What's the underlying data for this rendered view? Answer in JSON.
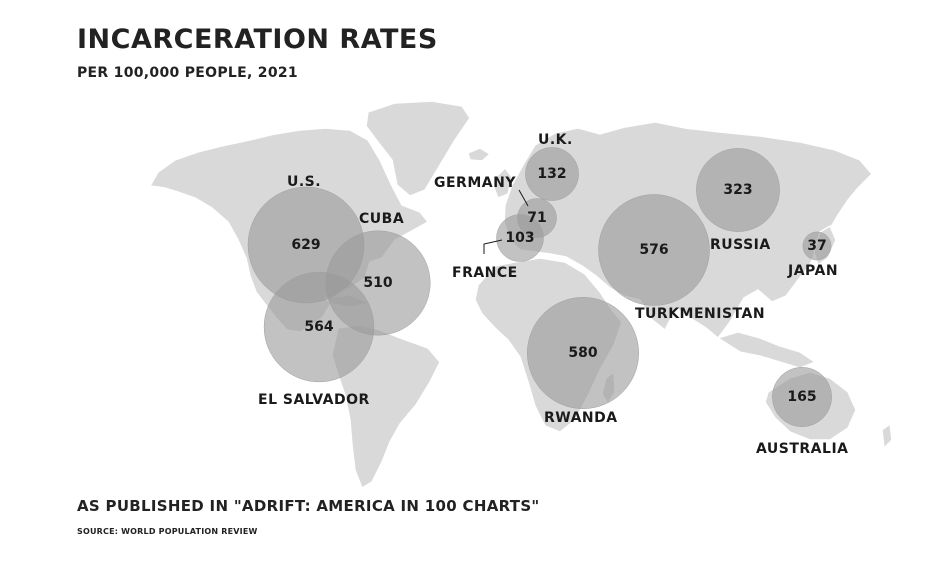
{
  "title": "INCARCERATION RATES",
  "subtitle": "PER 100,000 PEOPLE, 2021",
  "publication": "AS PUBLISHED IN \"ADRIFT: AMERICA IN 100 CHARTS\"",
  "source": "SOURCE: WORLD POPULATION REVIEW",
  "colors": {
    "land": "#d9d9d9",
    "bubble": "#999999",
    "text": "#1a1a1a"
  },
  "chart_data": {
    "type": "bubble-map",
    "title": "INCARCERATION RATES",
    "subtitle": "PER 100,000 PEOPLE, 2021",
    "series": [
      {
        "country": "U.S.",
        "value": 629
      },
      {
        "country": "CUBA",
        "value": 510
      },
      {
        "country": "EL SALVADOR",
        "value": 564
      },
      {
        "country": "U.K.",
        "value": 132
      },
      {
        "country": "GERMANY",
        "value": 71
      },
      {
        "country": "FRANCE",
        "value": 103
      },
      {
        "country": "RWANDA",
        "value": 580
      },
      {
        "country": "TURKMENISTAN",
        "value": 576
      },
      {
        "country": "RUSSIA",
        "value": 323
      },
      {
        "country": "JAPAN",
        "value": 37
      },
      {
        "country": "AUSTRALIA",
        "value": 165
      }
    ]
  }
}
